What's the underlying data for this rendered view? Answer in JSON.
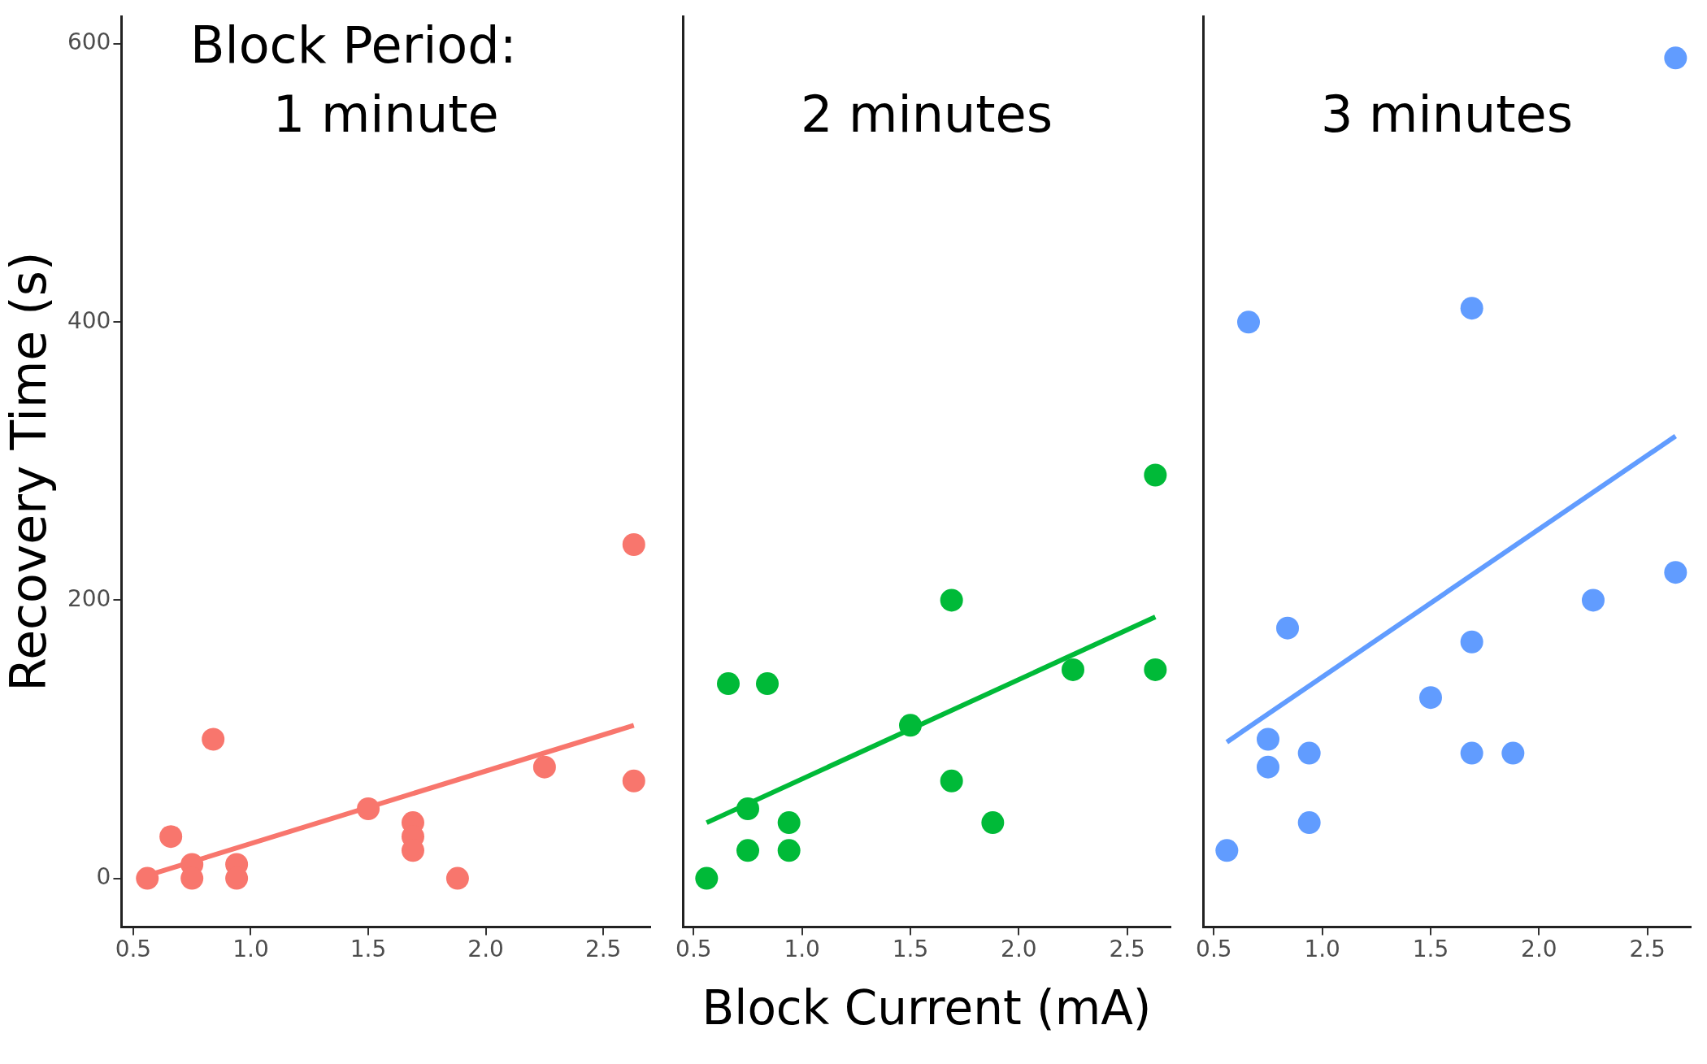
{
  "chart_data": [
    {
      "type": "scatter",
      "ylabel": "Recovery Time (s)",
      "annotations": [
        "Block Period:",
        "1 minute"
      ],
      "xlim": [
        0.45,
        2.7
      ],
      "xticks": [
        {
          "value": 0.5,
          "label": "0.5"
        },
        {
          "value": 1,
          "label": "1.0"
        },
        {
          "value": 1.5,
          "label": "1.5"
        },
        {
          "value": 2,
          "label": "2.0"
        },
        {
          "value": 2.5,
          "label": "2.5"
        }
      ],
      "ylim": [
        -35,
        620
      ],
      "yticks": [
        0,
        200,
        400,
        600
      ],
      "grid": false,
      "legend": false,
      "series": [
        {
          "color": "#f8766d",
          "marker": "circle",
          "x": [
            0.56,
            0.66,
            0.75,
            0.75,
            0.84,
            0.94,
            0.94,
            1.5,
            1.69,
            1.69,
            1.69,
            1.88,
            2.25,
            2.63,
            2.63
          ],
          "values": [
            0,
            30,
            10,
            0,
            100,
            10,
            0,
            50,
            40,
            30,
            20,
            0,
            80,
            240,
            70
          ]
        },
        {
          "type": "line",
          "color": "#f8766d",
          "marker": "none",
          "line_style": "solid",
          "x": [
            0.56,
            2.63
          ],
          "values": [
            2,
            110
          ]
        }
      ]
    },
    {
      "type": "scatter",
      "xlabel": "Block Current (mA)",
      "annotations": [
        "2 minutes"
      ],
      "xlim": [
        0.45,
        2.7
      ],
      "xticks": [
        {
          "value": 0.5,
          "label": "0.5"
        },
        {
          "value": 1,
          "label": "1.0"
        },
        {
          "value": 1.5,
          "label": "1.5"
        },
        {
          "value": 2,
          "label": "2.0"
        },
        {
          "value": 2.5,
          "label": "2.5"
        }
      ],
      "ylim": [
        -35,
        620
      ],
      "yticks": [
        0,
        200,
        400,
        600
      ],
      "tick_labels": "x",
      "grid": false,
      "legend": false,
      "series": [
        {
          "color": "#00ba38",
          "marker": "circle",
          "x": [
            0.56,
            0.66,
            0.75,
            0.75,
            0.84,
            0.94,
            0.94,
            1.5,
            1.69,
            1.69,
            1.88,
            2.25,
            2.63,
            2.63
          ],
          "values": [
            0,
            140,
            50,
            20,
            140,
            40,
            20,
            110,
            200,
            70,
            40,
            150,
            290,
            150
          ]
        },
        {
          "type": "line",
          "color": "#00ba38",
          "marker": "none",
          "line_style": "solid",
          "x": [
            0.56,
            2.63
          ],
          "values": [
            40,
            188
          ]
        }
      ]
    },
    {
      "type": "scatter",
      "annotations": [
        "3 minutes"
      ],
      "xlim": [
        0.45,
        2.7
      ],
      "xticks": [
        {
          "value": 0.5,
          "label": "0.5"
        },
        {
          "value": 1,
          "label": "1.0"
        },
        {
          "value": 1.5,
          "label": "1.5"
        },
        {
          "value": 2,
          "label": "2.0"
        },
        {
          "value": 2.5,
          "label": "2.5"
        }
      ],
      "ylim": [
        -35,
        620
      ],
      "yticks": [
        0,
        200,
        400,
        600
      ],
      "tick_labels": "x",
      "grid": false,
      "legend": false,
      "series": [
        {
          "color": "#619cff",
          "marker": "circle",
          "x": [
            0.56,
            0.66,
            0.75,
            0.75,
            0.84,
            0.94,
            0.94,
            1.5,
            1.69,
            1.69,
            1.69,
            1.88,
            2.25,
            2.63,
            2.63
          ],
          "values": [
            20,
            400,
            100,
            80,
            180,
            90,
            40,
            130,
            410,
            170,
            90,
            90,
            200,
            590,
            220
          ]
        },
        {
          "type": "line",
          "color": "#619cff",
          "marker": "none",
          "line_style": "solid",
          "x": [
            0.56,
            2.63
          ],
          "values": [
            98,
            318
          ]
        }
      ]
    }
  ]
}
